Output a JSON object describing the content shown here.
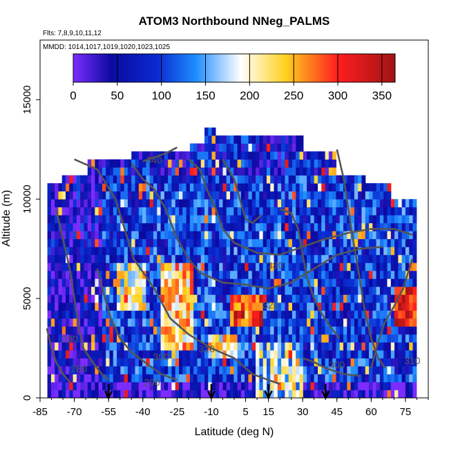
{
  "chart_data": {
    "type": "heatmap",
    "title": "ATOM3 Northbound NNeg_PALMS",
    "subtitle_flights": "Flts: 7,8,9,10,11,12",
    "subtitle_dates": "MMDD: 1014,1017,1019,1020,1023,1025",
    "xlabel": "Latitude (deg N)",
    "ylabel": "Altitude (m)",
    "xlim": [
      -85,
      85
    ],
    "ylim": [
      0,
      18000
    ],
    "x_ticks": [
      -85,
      -70,
      -55,
      -40,
      -25,
      -10,
      5,
      15,
      30,
      45,
      60,
      75
    ],
    "y_ticks": [
      0,
      5000,
      10000,
      15000
    ],
    "colorbar": {
      "range": [
        0,
        365
      ],
      "ticks": [
        0,
        50,
        100,
        150,
        200,
        250,
        300,
        350
      ],
      "colors": [
        "#7b2cff",
        "#0a0aa0",
        "#1e8cff",
        "#ffffff",
        "#ffd21e",
        "#ff1e1e",
        "#a01414"
      ]
    },
    "contours": [
      {
        "label": "340"
      },
      {
        "label": "330"
      },
      {
        "label": "320"
      },
      {
        "label": "310"
      },
      {
        "label": "300"
      },
      {
        "label": "290"
      },
      {
        "label": "280"
      },
      {
        "label": "280"
      },
      {
        "label": "300"
      },
      {
        "label": "310"
      }
    ],
    "arrow_latitudes": [
      -55,
      -10,
      15,
      40
    ],
    "coverage_note": "Curtain spans latitude approx -85 to 80; top near 13500 m at -10, ~12000 m at -40 and 30, ~10000 m at the edges",
    "color_legend_band": "Regions: purple low (0-50) at south edge and near surface; blue 50-150 dominant; yellow-red peaks (250-350) near 0-10N at 4000-5000 m, -30 to -20 at 3000-6000 m, and near 75N 4000 m"
  }
}
